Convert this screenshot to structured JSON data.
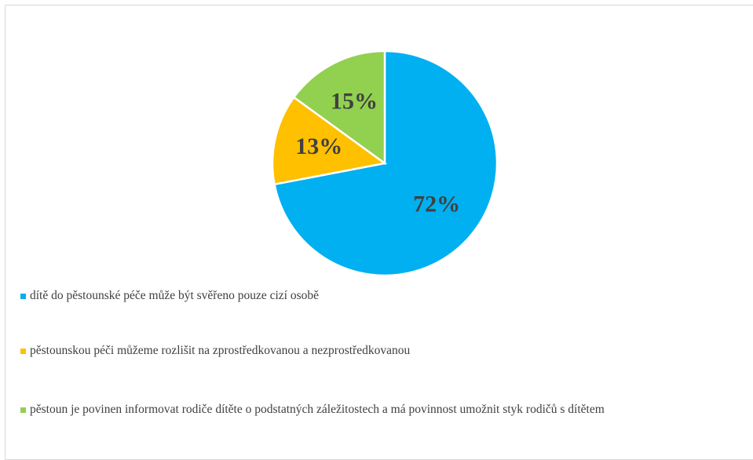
{
  "chart_data": {
    "type": "pie",
    "categories": [
      "dítě do pěstounské péče může být svěřeno pouze cizí osobě",
      "pěstounskou péči můžeme rozlišit na zprostředkovanou a nezprostředkovanou",
      "pěstoun je povinen informovat rodiče dítěte o podstatných záležitostech a má povinnost umožnit styk rodičů s dítětem"
    ],
    "values": [
      72,
      13,
      15
    ],
    "value_labels": [
      "72%",
      "13%",
      "15%"
    ],
    "colors": [
      "#00b0f0",
      "#ffc000",
      "#92d050"
    ],
    "legend": "bottom"
  }
}
